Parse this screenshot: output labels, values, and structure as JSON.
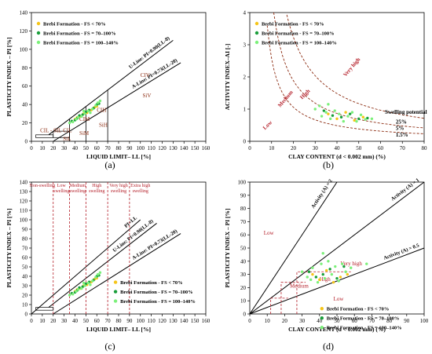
{
  "legend_entries": [
    "Brebi Formation - FS < 70%",
    "Brebi Formation - FS = 70–100%",
    "Brebi Formation - FS = 100–140%"
  ],
  "colors": {
    "series1": "#f5c518",
    "series2": "#1a9e3a",
    "series3": "#7cf07a",
    "red": "#b5202a",
    "zone": "#8b2a0f",
    "line": "#000000"
  },
  "chart_data": [
    {
      "panel": "(a)",
      "type": "scatter",
      "xlabel": "LIQUID LIMIT– LL [%]",
      "ylabel": "PLASTICITY INDEX – PI [%]",
      "xlim": [
        0,
        160
      ],
      "ylim": [
        0,
        140
      ],
      "xticks": [
        0,
        10,
        20,
        30,
        40,
        50,
        60,
        70,
        80,
        90,
        100,
        110,
        120,
        130,
        140,
        150,
        160
      ],
      "yticks": [
        0,
        20,
        40,
        60,
        80,
        100,
        120,
        140
      ],
      "lines": [
        {
          "label": "U-Line: PI=0.90(LL-8)",
          "points": [
            [
              16,
              7.2
            ],
            [
              130,
              109.8
            ]
          ]
        },
        {
          "label": "A-Line: PI=0.73(LL-20)",
          "points": [
            [
              20,
              0
            ],
            [
              137,
              85.4
            ]
          ]
        }
      ],
      "zones": [
        {
          "label": "CIV",
          "x": 100,
          "y": 70
        },
        {
          "label": "SiV",
          "x": 102,
          "y": 48
        },
        {
          "label": "CIH",
          "x": 60,
          "y": 32
        },
        {
          "label": "SiH",
          "x": 62,
          "y": 16
        },
        {
          "label": "CIM",
          "x": 44,
          "y": 22
        },
        {
          "label": "SiM",
          "x": 44,
          "y": 7
        },
        {
          "label": "CIL",
          "x": 29,
          "y": 10
        },
        {
          "label": "SiL",
          "x": 29,
          "y": 1
        },
        {
          "label": "CIL - SIL",
          "x": 8,
          "y": 10
        }
      ],
      "series": [
        {
          "name": "Brebi Formation - FS < 70%",
          "points": [
            [
              40,
              24
            ],
            [
              42,
              26
            ],
            [
              45,
              27
            ],
            [
              48,
              30
            ],
            [
              51,
              31
            ],
            [
              55,
              34
            ],
            [
              58,
              37
            ],
            [
              60,
              38
            ]
          ]
        },
        {
          "name": "Brebi Formation - FS = 70–100%",
          "points": [
            [
              37,
              22
            ],
            [
              40,
              23
            ],
            [
              42,
              25
            ],
            [
              44,
              28
            ],
            [
              47,
              29
            ],
            [
              50,
              32
            ],
            [
              53,
              34
            ],
            [
              57,
              36
            ],
            [
              60,
              40
            ],
            [
              62,
              41
            ]
          ]
        },
        {
          "name": "Brebi Formation - FS = 100–140%",
          "points": [
            [
              38,
              21
            ],
            [
              41,
              24
            ],
            [
              43,
              26
            ],
            [
              46,
              27
            ],
            [
              49,
              30
            ],
            [
              52,
              33
            ],
            [
              56,
              35
            ],
            [
              59,
              39
            ],
            [
              61,
              42
            ],
            [
              63,
              44
            ],
            [
              35,
              20
            ],
            [
              48,
              33
            ],
            [
              54,
              31
            ]
          ]
        }
      ]
    },
    {
      "panel": "(b)",
      "type": "scatter",
      "xlabel": "CLAY CONTENT (d < 0.002 mm) (%)",
      "ylabel": "ACTIVITY INDEX–AI [-]",
      "xlim": [
        0,
        80
      ],
      "ylim": [
        0,
        4
      ],
      "xticks": [
        0,
        10,
        20,
        30,
        40,
        50,
        60,
        70,
        80
      ],
      "yticks": [
        0,
        1,
        2,
        3,
        4
      ],
      "curves": [
        "Very high",
        "High",
        "Medium",
        "Low"
      ],
      "curve_labels": [
        "25%",
        "5%",
        "1.5%"
      ],
      "annotation": "Swelling potential",
      "series": [
        {
          "name": "Brebi Formation - FS < 70%",
          "points": [
            [
              36,
              0.85
            ],
            [
              40,
              0.7
            ],
            [
              44,
              0.9
            ],
            [
              48,
              0.65
            ],
            [
              52,
              0.75
            ]
          ]
        },
        {
          "name": "Brebi Formation - FS = 70–100%",
          "points": [
            [
              34,
              0.95
            ],
            [
              38,
              0.8
            ],
            [
              42,
              0.75
            ],
            [
              46,
              0.85
            ],
            [
              50,
              0.7
            ],
            [
              54,
              0.72
            ]
          ]
        },
        {
          "name": "Brebi Formation - FS = 100–140%",
          "points": [
            [
              30,
              1.0
            ],
            [
              32,
              1.1
            ],
            [
              35,
              0.9
            ],
            [
              37,
              0.7
            ],
            [
              39,
              0.95
            ],
            [
              41,
              0.85
            ],
            [
              43,
              0.62
            ],
            [
              45,
              0.78
            ],
            [
              47,
              0.9
            ],
            [
              49,
              0.62
            ],
            [
              51,
              0.82
            ],
            [
              53,
              0.68
            ],
            [
              56,
              0.7
            ],
            [
              33,
              0.78
            ],
            [
              36,
              1.15
            ]
          ]
        }
      ]
    },
    {
      "panel": "(c)",
      "type": "scatter",
      "xlabel": "LIQUID LIMIT– LL [%]",
      "ylabel": "PLASTICITY INDEX – PI [%]",
      "xlim": [
        0,
        160
      ],
      "ylim": [
        0,
        140
      ],
      "xticks": [
        0,
        10,
        20,
        30,
        40,
        50,
        60,
        70,
        80,
        90,
        100,
        110,
        120,
        130,
        140,
        150,
        160
      ],
      "yticks": [
        0,
        10,
        20,
        30,
        40,
        50,
        60,
        70,
        80,
        90,
        100,
        110,
        120,
        130,
        140
      ],
      "lines": [
        {
          "label": "PI=LL",
          "points": [
            [
              0,
              0
            ],
            [
              100,
              100
            ]
          ]
        },
        {
          "label": "U-Line: PI=0.90(LL-8)",
          "points": [
            [
              16,
              7.2
            ],
            [
              115,
              96.3
            ]
          ]
        },
        {
          "label": "A-Line: PI=0.73(LL-20)",
          "points": [
            [
              20,
              0
            ],
            [
              137,
              85.4
            ]
          ]
        }
      ],
      "zones": [
        "Non-swelling",
        "Low swelling",
        "Medium swelling",
        "High swelling",
        "Very high swelling",
        "Extra high swelling"
      ],
      "zone_bounds": [
        20,
        35,
        50,
        70,
        90
      ],
      "series": [
        {
          "name": "Brebi Formation - FS < 70%",
          "points": [
            [
              40,
              24
            ],
            [
              42,
              26
            ],
            [
              45,
              27
            ],
            [
              48,
              30
            ],
            [
              51,
              31
            ],
            [
              55,
              34
            ],
            [
              58,
              37
            ],
            [
              60,
              38
            ]
          ]
        },
        {
          "name": "Brebi Formation - FS = 70–100%",
          "points": [
            [
              37,
              22
            ],
            [
              40,
              23
            ],
            [
              42,
              25
            ],
            [
              44,
              28
            ],
            [
              47,
              29
            ],
            [
              50,
              32
            ],
            [
              53,
              34
            ],
            [
              57,
              36
            ],
            [
              60,
              40
            ],
            [
              62,
              41
            ]
          ]
        },
        {
          "name": "Brebi Formation - FS = 100–140%",
          "points": [
            [
              38,
              21
            ],
            [
              41,
              24
            ],
            [
              43,
              26
            ],
            [
              46,
              27
            ],
            [
              49,
              30
            ],
            [
              52,
              33
            ],
            [
              56,
              35
            ],
            [
              59,
              39
            ],
            [
              61,
              42
            ],
            [
              63,
              44
            ],
            [
              35,
              20
            ],
            [
              48,
              33
            ],
            [
              54,
              31
            ]
          ]
        }
      ]
    },
    {
      "panel": "(d)",
      "type": "scatter",
      "xlabel": "CLAY CONTENT (d < 0.002 mm) (%)",
      "ylabel": "PLASTICITY INDEX – PI [%]",
      "xlim": [
        0,
        100
      ],
      "ylim": [
        0,
        100
      ],
      "xticks": [
        0,
        10,
        20,
        30,
        40,
        50,
        60,
        70,
        80,
        90,
        100
      ],
      "yticks": [
        0,
        10,
        20,
        30,
        40,
        50,
        60,
        70,
        80,
        90,
        100
      ],
      "lines": [
        {
          "label": "Activity (A) = 2",
          "points": [
            [
              0,
              0
            ],
            [
              50,
              100
            ]
          ]
        },
        {
          "label": "Activity (A) = 1",
          "points": [
            [
              0,
              0
            ],
            [
              100,
              100
            ]
          ]
        },
        {
          "label": "Activity (A) = 0.5",
          "points": [
            [
              0,
              0
            ],
            [
              100,
              50
            ]
          ]
        }
      ],
      "zones": [
        {
          "label": "Low",
          "x": 8,
          "y": 60
        },
        {
          "label": "Very high",
          "x": 52,
          "y": 37
        },
        {
          "label": "High",
          "x": 40,
          "y": 25
        },
        {
          "label": "Medium",
          "x": 23,
          "y": 20
        },
        {
          "label": "Low",
          "x": 48,
          "y": 10
        }
      ],
      "series": [
        {
          "name": "Brebi Formation - FS < 70%",
          "points": [
            [
              36,
              30
            ],
            [
              40,
              26
            ],
            [
              44,
              33
            ],
            [
              48,
              24
            ],
            [
              52,
              28
            ],
            [
              56,
              30
            ]
          ]
        },
        {
          "name": "Brebi Formation - FS = 70–100%",
          "points": [
            [
              34,
              32
            ],
            [
              38,
              28
            ],
            [
              42,
              30
            ],
            [
              46,
              34
            ],
            [
              50,
              27
            ],
            [
              54,
              36
            ]
          ]
        },
        {
          "name": "Brebi Formation - FS = 100–140%",
          "points": [
            [
              30,
              32
            ],
            [
              33,
              28
            ],
            [
              36,
              35
            ],
            [
              39,
              24
            ],
            [
              41,
              38
            ],
            [
              43,
              27
            ],
            [
              45,
              40
            ],
            [
              47,
              30
            ],
            [
              49,
              36
            ],
            [
              51,
              25
            ],
            [
              53,
              38
            ],
            [
              55,
              32
            ],
            [
              58,
              35
            ],
            [
              35,
              26
            ],
            [
              42,
              46
            ],
            [
              67,
              38
            ]
          ]
        }
      ]
    }
  ],
  "captions": [
    "(a)",
    "(b)",
    "(c)",
    "(d)"
  ]
}
